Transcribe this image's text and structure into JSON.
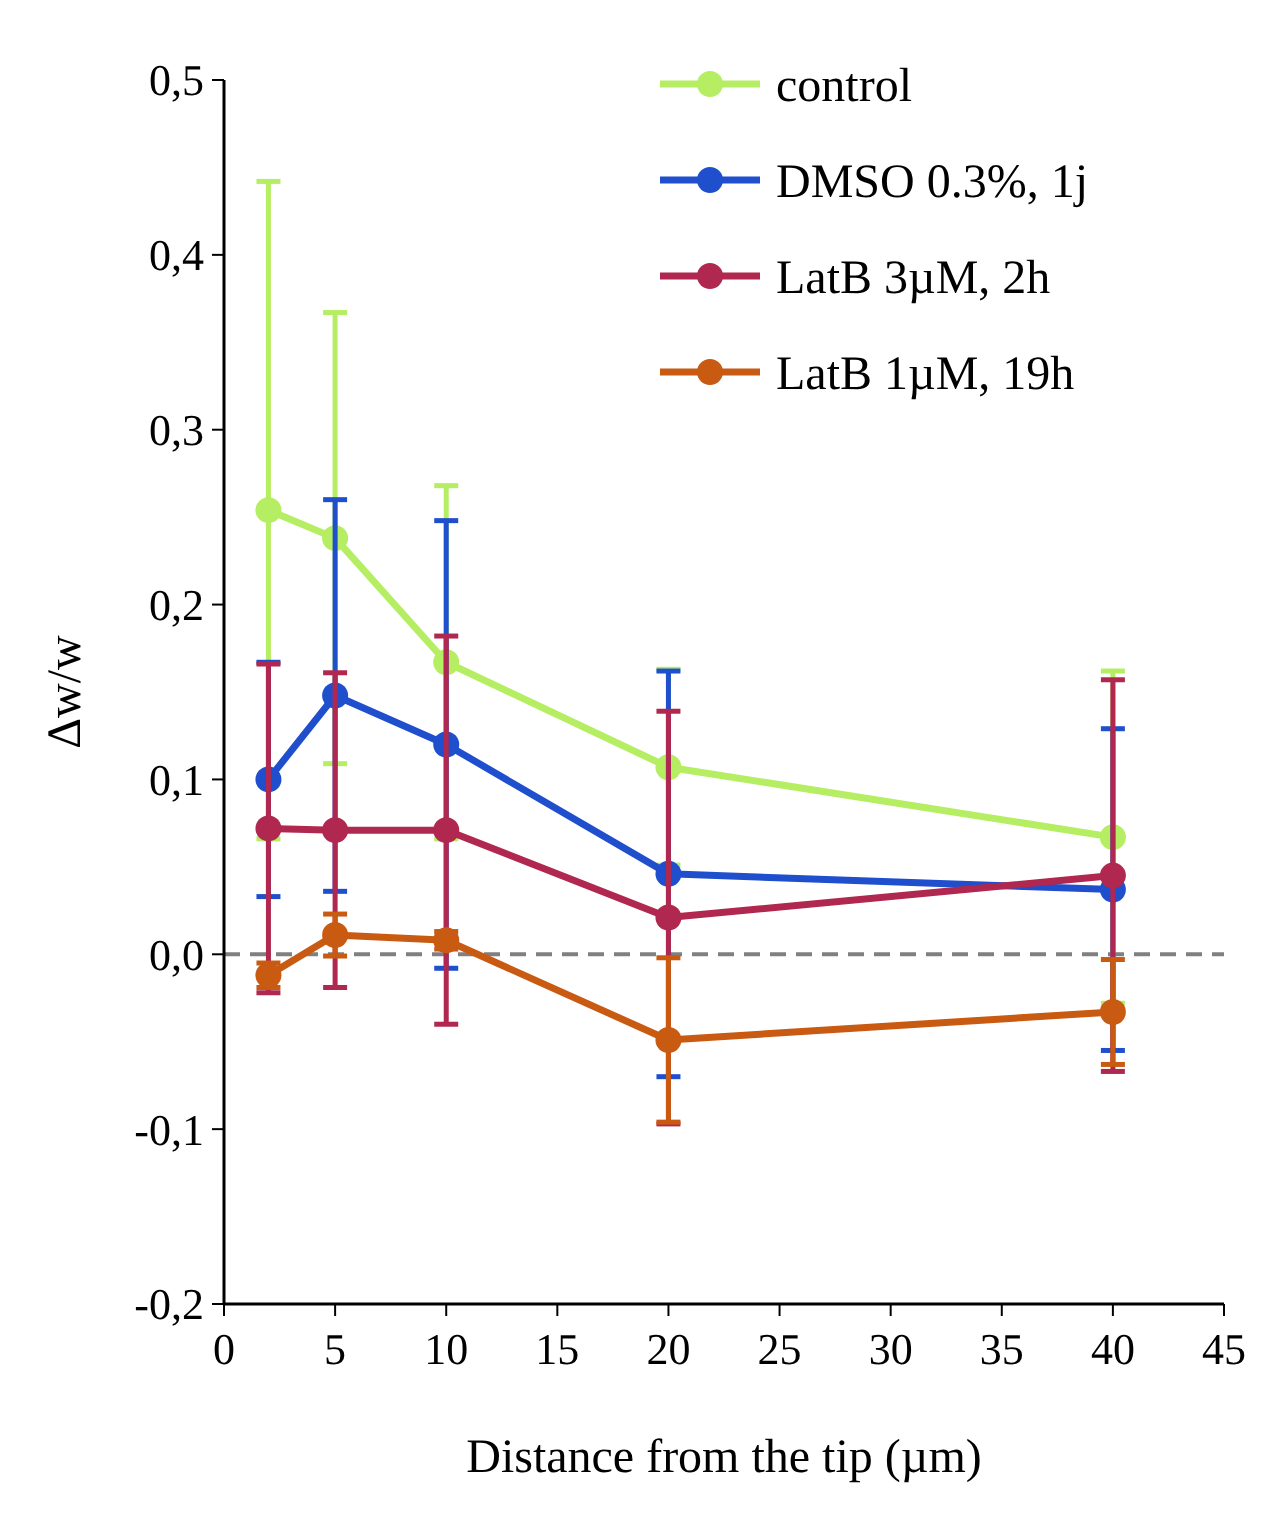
{
  "chart_data": {
    "type": "line",
    "xlabel": "Distance from the tip (µm)",
    "ylabel": "Δw/w",
    "x": [
      2,
      5,
      10,
      20,
      40
    ],
    "series": [
      {
        "name": "control",
        "color": "#b5ee62",
        "values": [
          0.254,
          0.238,
          0.167,
          0.107,
          0.067
        ],
        "errors": [
          0.188,
          0.129,
          0.101,
          0.056,
          0.095
        ]
      },
      {
        "name": "DMSO 0.3%, 1j",
        "color": "#1f4fcc",
        "values": [
          0.1,
          0.148,
          0.12,
          0.046,
          0.037
        ],
        "errors": [
          0.067,
          0.112,
          0.128,
          0.116,
          0.092
        ]
      },
      {
        "name": "LatB 3µM, 2h",
        "color": "#b0284f",
        "values": [
          0.072,
          0.071,
          0.071,
          0.021,
          0.045
        ],
        "errors": [
          0.094,
          0.09,
          0.111,
          0.118,
          0.112
        ]
      },
      {
        "name": "LatB 1µM, 19h",
        "color": "#c85a12",
        "values": [
          -0.012,
          0.011,
          0.008,
          -0.049,
          -0.033
        ],
        "errors": [
          0.007,
          0.012,
          0.005,
          0.047,
          0.03
        ]
      }
    ],
    "xlim": [
      0,
      45
    ],
    "xticks": [
      0,
      5,
      10,
      15,
      20,
      25,
      30,
      35,
      40,
      45
    ],
    "ylim": [
      -0.2,
      0.5
    ],
    "yticks": [
      {
        "value": -0.2,
        "label": "-0,2"
      },
      {
        "value": -0.1,
        "label": "-0,1"
      },
      {
        "value": 0,
        "label": "0,0"
      },
      {
        "value": 0.1,
        "label": "0,1"
      },
      {
        "value": 0.2,
        "label": "0,2"
      },
      {
        "value": 0.3,
        "label": "0,3"
      },
      {
        "value": 0.4,
        "label": "0,4"
      },
      {
        "value": 0.5,
        "label": "0,5"
      }
    ],
    "ref_lines": [
      {
        "axis": "y",
        "value": 0,
        "color": "#808080",
        "line_style": "dashed"
      }
    ],
    "marker": "circle",
    "line_style": "solid",
    "legend": "top right",
    "grid": false
  }
}
